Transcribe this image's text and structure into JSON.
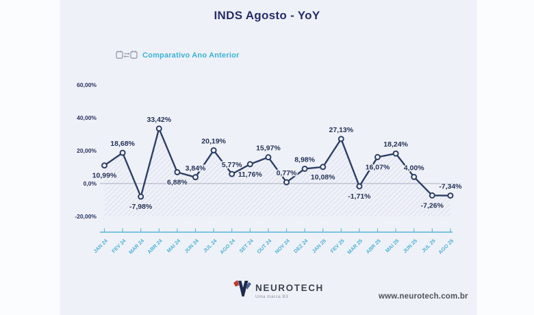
{
  "slide": {
    "background_color": "#eff1f8",
    "margin_color": "#fbfcfe"
  },
  "header": {
    "title": "INDS Agosto - YoY"
  },
  "legend": {
    "label": "Comparativo Ano Anterior",
    "icon": "calendar-compare-icon"
  },
  "chart_data": {
    "type": "line",
    "title": "INDS Agosto - YoY",
    "series_name": "Comparativo Ano Anterior",
    "categories": [
      "JAN 24",
      "FEV 24",
      "MAR 24",
      "ABR 24",
      "MAI 24",
      "JUN 24",
      "JUL 24",
      "AGO 24",
      "SET 24",
      "OUT 24",
      "NOV 24",
      "DEZ 24",
      "JAN 25",
      "FEV 25",
      "MAR 25",
      "ABR 25",
      "MAI 25",
      "JUN 25",
      "JUL 25",
      "AGO 25"
    ],
    "values": [
      10.99,
      18.68,
      -7.98,
      33.42,
      6.88,
      3.84,
      20.19,
      5.77,
      11.76,
      15.97,
      0.77,
      8.98,
      10.08,
      27.13,
      -1.71,
      16.07,
      18.24,
      4.0,
      -7.26,
      -7.34
    ],
    "value_labels": [
      "10,99%",
      "18,68%",
      "-7,98%",
      "33,42%",
      "6,88%",
      "3,84%",
      "20,19%",
      "5,77%",
      "11,76%",
      "15,97%",
      "0,77%",
      "8,98%",
      "10,08%",
      "27,13%",
      "-1,71%",
      "16,07%",
      "18,24%",
      "4,00%",
      "-7,26%",
      "-7,34%"
    ],
    "label_placement": [
      "below",
      "above",
      "below",
      "above",
      "below",
      "above",
      "above",
      "above",
      "below",
      "above",
      "above",
      "above",
      "below",
      "above",
      "below",
      "below",
      "above",
      "above",
      "below",
      "above"
    ],
    "y_ticks": {
      "labels": [
        "60,00%",
        "40,00%",
        "20,00%",
        "0,0%",
        "-20,00%"
      ],
      "values": [
        60,
        40,
        20,
        0,
        -20
      ]
    },
    "ylim": [
      -20,
      60
    ],
    "grid": "zero-line-only",
    "area_style": "diagonal-hatch",
    "legend_position": "top-left",
    "colors": {
      "line": "#2d3f66",
      "marker_fill": "#f3f4f9",
      "value_label": "#243257",
      "axis": "#54b6d8",
      "category_label": "#4db3d7",
      "y_tick_label": "#2a3160",
      "zero_line": "#9099aa",
      "hatch": "#b9bedc"
    }
  },
  "footer": {
    "brand": "NEUROTECH",
    "brand_sub": "Uma marca B3",
    "website": "www.neurotech.com.br"
  }
}
